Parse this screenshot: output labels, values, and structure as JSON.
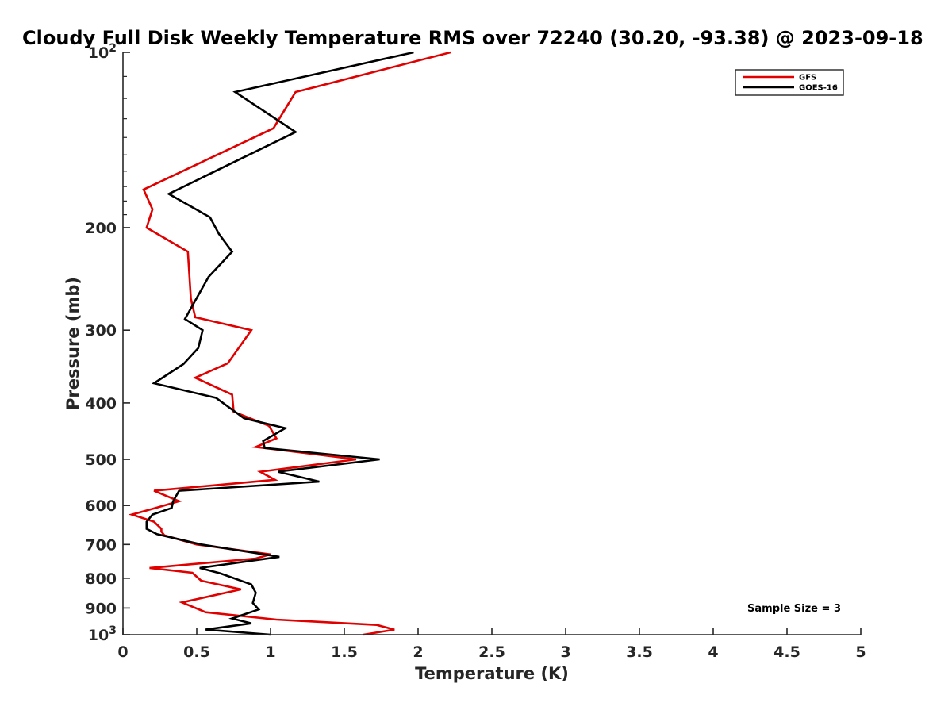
{
  "chart_data": {
    "type": "line",
    "title": "Cloudy Full Disk Weekly Temperature RMS over 72240 (30.20, -93.38) @ 2023-09-18",
    "xlabel": "Temperature (K)",
    "ylabel": "Pressure (mb)",
    "xlim": [
      0,
      5
    ],
    "ylim": [
      100,
      1000
    ],
    "y_scale": "log",
    "y_reversed": true,
    "grid": false,
    "legend_position": "top-right",
    "x_ticks": [
      {
        "value": 0,
        "label": "0"
      },
      {
        "value": 0.5,
        "label": "0.5"
      },
      {
        "value": 1,
        "label": "1"
      },
      {
        "value": 1.5,
        "label": "1.5"
      },
      {
        "value": 2,
        "label": "2"
      },
      {
        "value": 2.5,
        "label": "2.5"
      },
      {
        "value": 3,
        "label": "3"
      },
      {
        "value": 3.5,
        "label": "3.5"
      },
      {
        "value": 4,
        "label": "4"
      },
      {
        "value": 4.5,
        "label": "4.5"
      },
      {
        "value": 5,
        "label": "5"
      }
    ],
    "y_ticks": [
      {
        "value": 100,
        "base": "10",
        "exp": "2"
      },
      {
        "value": 200,
        "base": "200",
        "exp": ""
      },
      {
        "value": 300,
        "base": "300",
        "exp": ""
      },
      {
        "value": 400,
        "base": "400",
        "exp": ""
      },
      {
        "value": 500,
        "base": "500",
        "exp": ""
      },
      {
        "value": 600,
        "base": "600",
        "exp": ""
      },
      {
        "value": 700,
        "base": "700",
        "exp": ""
      },
      {
        "value": 800,
        "base": "800",
        "exp": ""
      },
      {
        "value": 900,
        "base": "900",
        "exp": ""
      },
      {
        "value": 1000,
        "base": "10",
        "exp": "3"
      }
    ],
    "series": [
      {
        "name": "GFS",
        "color": "#e00000",
        "points": [
          [
            2.22,
            100
          ],
          [
            1.17,
            117
          ],
          [
            1.02,
            135
          ],
          [
            0.14,
            172
          ],
          [
            0.2,
            186
          ],
          [
            0.16,
            200
          ],
          [
            0.44,
            220
          ],
          [
            0.46,
            265
          ],
          [
            0.49,
            285
          ],
          [
            0.87,
            300
          ],
          [
            0.71,
            342
          ],
          [
            0.49,
            362
          ],
          [
            0.74,
            387
          ],
          [
            0.75,
            414
          ],
          [
            0.99,
            438
          ],
          [
            1.04,
            460
          ],
          [
            0.9,
            476
          ],
          [
            1.58,
            500
          ],
          [
            0.93,
            525
          ],
          [
            1.03,
            542
          ],
          [
            0.21,
            566
          ],
          [
            0.38,
            590
          ],
          [
            0.21,
            607
          ],
          [
            0.06,
            622
          ],
          [
            0.21,
            640
          ],
          [
            0.26,
            658
          ],
          [
            0.26,
            665
          ],
          [
            0.28,
            675
          ],
          [
            0.5,
            700
          ],
          [
            1.0,
            728
          ],
          [
            0.9,
            740
          ],
          [
            0.18,
            768
          ],
          [
            0.47,
            783
          ],
          [
            0.53,
            808
          ],
          [
            0.8,
            836
          ],
          [
            0.4,
            880
          ],
          [
            0.56,
            915
          ],
          [
            1.04,
            942
          ],
          [
            1.72,
            962
          ],
          [
            1.84,
            980
          ],
          [
            1.63,
            1000
          ]
        ]
      },
      {
        "name": "GOES-16",
        "color": "#000000",
        "points": [
          [
            1.97,
            100
          ],
          [
            0.76,
            117
          ],
          [
            1.17,
            137
          ],
          [
            0.31,
            175
          ],
          [
            0.59,
            192
          ],
          [
            0.65,
            205
          ],
          [
            0.74,
            220
          ],
          [
            0.58,
            243
          ],
          [
            0.42,
            287
          ],
          [
            0.54,
            300
          ],
          [
            0.51,
            322
          ],
          [
            0.41,
            343
          ],
          [
            0.21,
            370
          ],
          [
            0.63,
            392
          ],
          [
            0.82,
            425
          ],
          [
            1.1,
            442
          ],
          [
            0.95,
            465
          ],
          [
            0.96,
            478
          ],
          [
            1.74,
            500
          ],
          [
            1.05,
            525
          ],
          [
            1.33,
            546
          ],
          [
            0.38,
            566
          ],
          [
            0.34,
            590
          ],
          [
            0.33,
            606
          ],
          [
            0.2,
            622
          ],
          [
            0.16,
            640
          ],
          [
            0.16,
            658
          ],
          [
            0.23,
            672
          ],
          [
            0.53,
            700
          ],
          [
            1.06,
            735
          ],
          [
            0.52,
            768
          ],
          [
            0.66,
            785
          ],
          [
            0.87,
            820
          ],
          [
            0.9,
            847
          ],
          [
            0.88,
            882
          ],
          [
            0.92,
            905
          ],
          [
            0.74,
            938
          ],
          [
            0.87,
            956
          ],
          [
            0.56,
            980
          ],
          [
            1.0,
            1000
          ]
        ]
      }
    ],
    "annotations": [
      {
        "text": "Sample Size = 3"
      }
    ]
  }
}
